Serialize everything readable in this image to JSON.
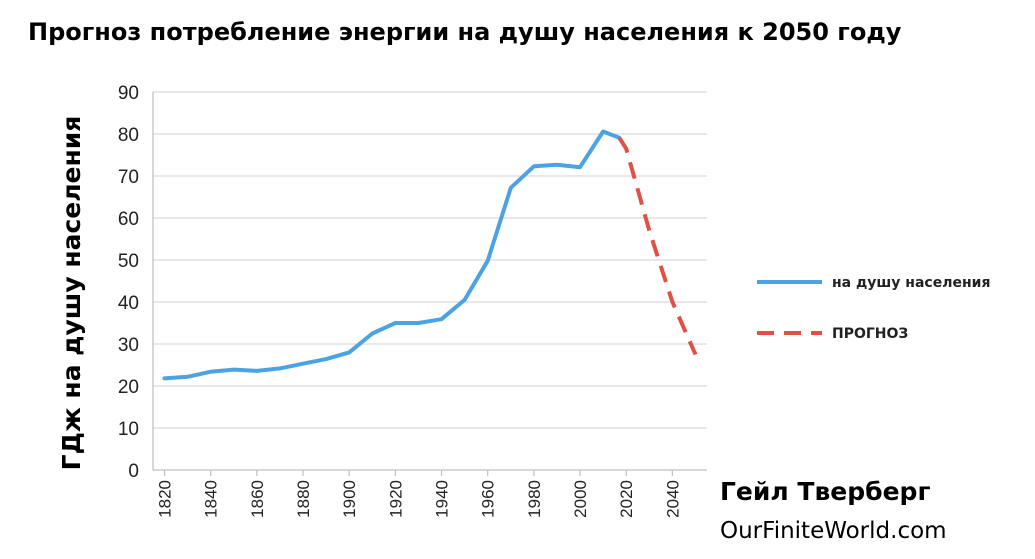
{
  "colors": {
    "historical": "#4ba3e3",
    "forecast": "#e05045",
    "text": "#000000",
    "grid": "#d9d9d9"
  },
  "author": "Гейл Тверберг",
  "website": "OurFiniteWorld.com",
  "chart_data": {
    "type": "line",
    "title": "Прогноз потребление энергии на душу населения к 2050 году",
    "xlabel": "",
    "ylabel": "ГДж на душу населения",
    "ylim": [
      0,
      90
    ],
    "yticks": [
      0,
      10,
      20,
      30,
      40,
      50,
      60,
      70,
      80,
      90
    ],
    "xlim": [
      1815,
      2055
    ],
    "xticks": [
      "1820",
      "1840",
      "1860",
      "1880",
      "1900",
      "1920",
      "1940",
      "1960",
      "1980",
      "2000",
      "2020",
      "2040"
    ],
    "grid": true,
    "legend_position": "right",
    "series": [
      {
        "name": "на душу населения",
        "style": "solid",
        "x": [
          1820,
          1830,
          1840,
          1850,
          1860,
          1870,
          1880,
          1890,
          1900,
          1910,
          1920,
          1930,
          1940,
          1950,
          1960,
          1970,
          1980,
          1990,
          2000,
          2010,
          2017
        ],
        "y": [
          21.8,
          22.2,
          23.4,
          23.9,
          23.6,
          24.2,
          25.3,
          26.4,
          28.0,
          32.5,
          35.0,
          35.0,
          35.9,
          40.5,
          49.8,
          67.2,
          72.3,
          72.7,
          72.1,
          80.6,
          79.1
        ]
      },
      {
        "name": "ПРОГНОЗ",
        "style": "dashed",
        "x": [
          2017,
          2020,
          2030,
          2040,
          2050
        ],
        "y": [
          79.1,
          76.5,
          57.0,
          40.0,
          27.5
        ]
      }
    ]
  }
}
